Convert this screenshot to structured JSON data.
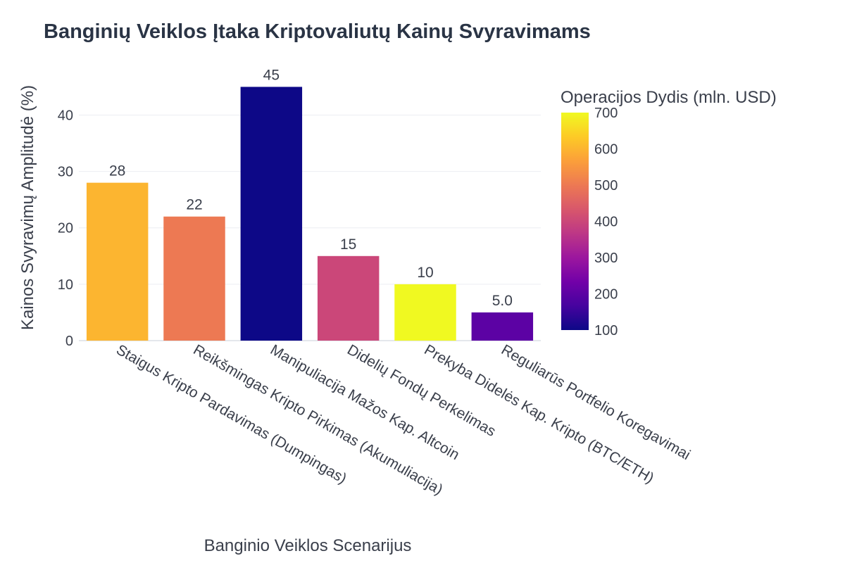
{
  "chart_data": {
    "type": "bar",
    "title": "Banginių Veiklos Įtaka Kriptovaliutų Kainų Svyravimams",
    "xlabel": "Banginio Veiklos Scenarijus",
    "ylabel": "Kainos Svyravimų Amplitudė (%)",
    "ylim": [
      0,
      47.3
    ],
    "yticks": [
      0,
      10,
      20,
      30,
      40
    ],
    "grid": true,
    "categories": [
      "Staigus Kripto Pardavimas (Dumpingas)",
      "Reikšmingas Kripto Pirkimas (Akumuliacija)",
      "Manipuliacija Mažos Kap. Altcoin",
      "Didelių Fondų Perkelimas",
      "Prekyba Didelės Kap. Kripto (BTC/ETH)",
      "Reguliarūs Portfelio Koregavimai"
    ],
    "values": [
      28,
      22,
      45,
      15,
      10,
      5
    ],
    "value_labels": [
      "28",
      "22",
      "45",
      "15",
      "10",
      "5.0"
    ],
    "color_values": [
      600,
      500,
      100,
      400,
      700,
      200
    ],
    "colorbar": {
      "title": "Operacijos Dydis (mln. USD)",
      "range": [
        100,
        700
      ],
      "ticks": [
        100,
        200,
        300,
        400,
        500,
        600,
        700
      ],
      "colorscale": [
        "#0d0887",
        "#46039f",
        "#7201a8",
        "#9c179e",
        "#bd3786",
        "#d8576b",
        "#ed7953",
        "#fb9f3a",
        "#fdca26",
        "#f0f921"
      ]
    }
  }
}
